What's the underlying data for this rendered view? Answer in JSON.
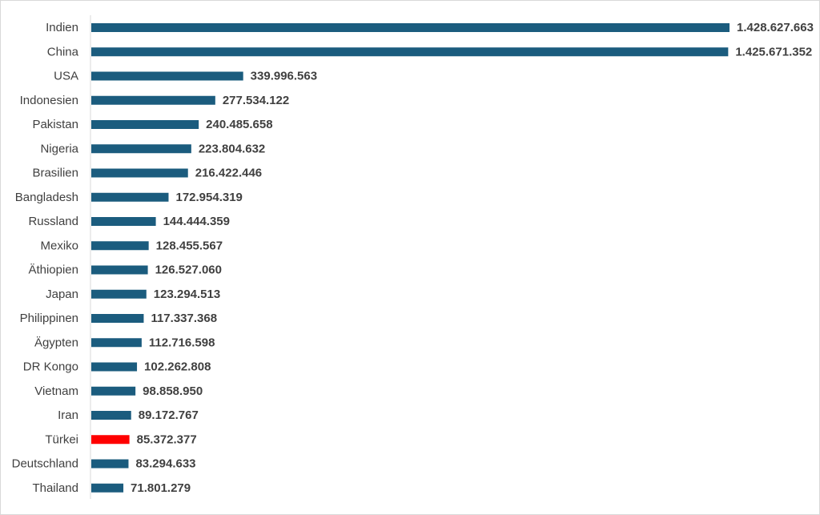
{
  "chart_data": {
    "type": "bar",
    "orientation": "horizontal",
    "categories": [
      "Indien",
      "China",
      "USA",
      "Indonesien",
      "Pakistan",
      "Nigeria",
      "Brasilien",
      "Bangladesh",
      "Russland",
      "Mexiko",
      "Äthiopien",
      "Japan",
      "Philippinen",
      "Ägypten",
      "DR Kongo",
      "Vietnam",
      "Iran",
      "Türkei",
      "Deutschland",
      "Thailand"
    ],
    "values": [
      1428627663,
      1425671352,
      339996563,
      277534122,
      240485658,
      223804632,
      216422446,
      172954319,
      144444359,
      128455567,
      126527060,
      123294513,
      117337368,
      112716598,
      102262808,
      98858950,
      89172767,
      85372377,
      83294633,
      71801279
    ],
    "value_labels": [
      "1.428.627.663",
      "1.425.671.352",
      "339.996.563",
      "277.534.122",
      "240.485.658",
      "223.804.632",
      "216.422.446",
      "172.954.319",
      "144.444.359",
      "128.455.567",
      "126.527.060",
      "123.294.513",
      "117.337.368",
      "112.716.598",
      "102.262.808",
      "98.858.950",
      "89.172.767",
      "85.372.377",
      "83.294.633",
      "71.801.279"
    ],
    "highlight_category": "Türkei",
    "title": "",
    "xlabel": "",
    "ylabel": "",
    "xlim": [
      0,
      1428627663
    ],
    "grid": false,
    "legend": "none",
    "colors": {
      "bar": "#1b5c7e",
      "highlight": "#ff0000",
      "axis": "#d9d9d9",
      "text": "#404040"
    }
  }
}
